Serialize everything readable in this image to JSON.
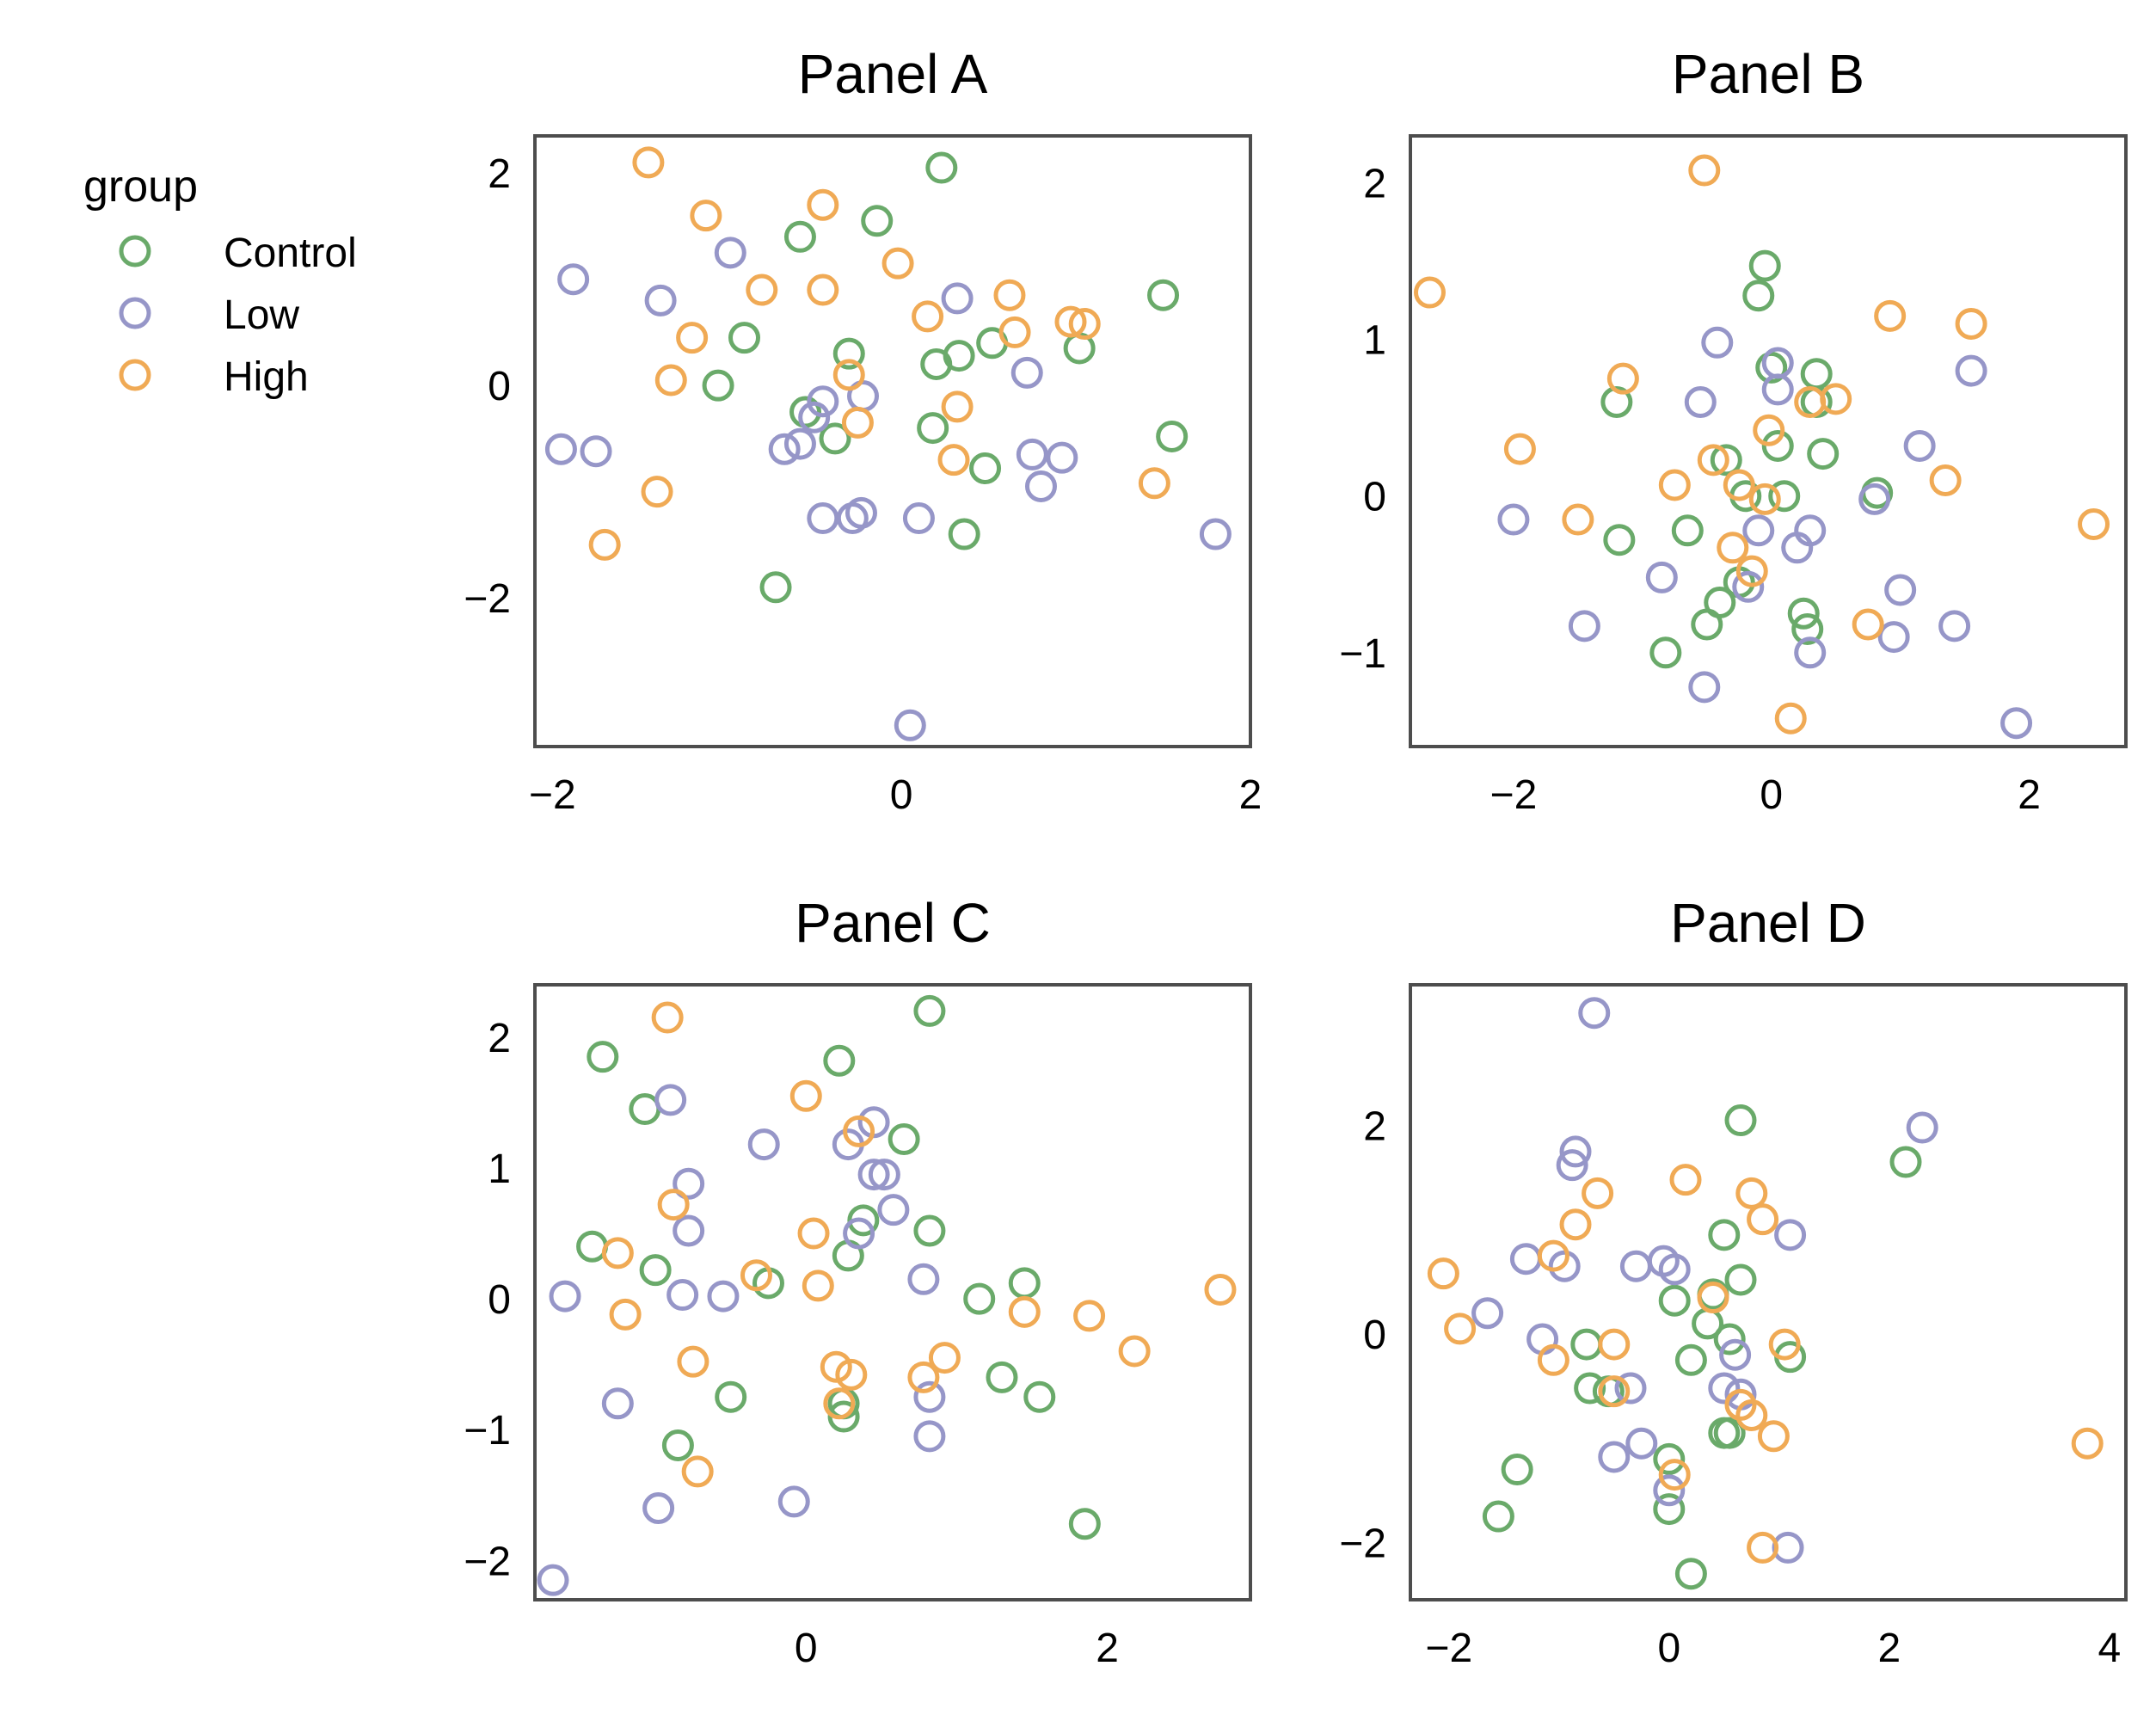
{
  "legend": {
    "title": "group",
    "entries": [
      {
        "name": "Control",
        "color": "#6aaa6a"
      },
      {
        "name": "Low",
        "color": "#9696c8"
      },
      {
        "name": "High",
        "color": "#f0aa55"
      }
    ]
  },
  "chart_data": [
    {
      "type": "scatter",
      "title": "Panel A",
      "xlim": [
        -2.1,
        2.0
      ],
      "ylim": [
        -3.4,
        2.35
      ],
      "xticks": [
        -2,
        0,
        2
      ],
      "yticks": [
        -2,
        0,
        2
      ],
      "tick_labels_x": [
        "−2",
        "0",
        "2"
      ],
      "tick_labels_y": [
        "−2",
        "0",
        "2"
      ],
      "series": [
        {
          "name": "Control",
          "points": [
            [
              0.23,
              2.05
            ],
            [
              -0.14,
              1.55
            ],
            [
              -0.58,
              1.4
            ],
            [
              1.5,
              0.85
            ],
            [
              -0.9,
              0.45
            ],
            [
              -1.05,
              0.0
            ],
            [
              -0.3,
              0.3
            ],
            [
              0.2,
              0.2
            ],
            [
              0.33,
              0.28
            ],
            [
              0.52,
              0.4
            ],
            [
              1.02,
              0.35
            ],
            [
              -0.55,
              -0.25
            ],
            [
              -0.38,
              -0.5
            ],
            [
              0.18,
              -0.4
            ],
            [
              0.48,
              -0.78
            ],
            [
              1.55,
              -0.48
            ],
            [
              0.36,
              -1.4
            ],
            [
              -0.72,
              -1.9
            ]
          ]
        },
        {
          "name": "Low",
          "points": [
            [
              -1.88,
              1.0
            ],
            [
              -1.38,
              0.8
            ],
            [
              -0.98,
              1.25
            ],
            [
              0.32,
              0.82
            ],
            [
              0.72,
              0.12
            ],
            [
              -0.45,
              -0.15
            ],
            [
              -0.5,
              -0.3
            ],
            [
              -0.58,
              -0.55
            ],
            [
              -0.22,
              -0.1
            ],
            [
              -0.67,
              -0.6
            ],
            [
              -1.95,
              -0.6
            ],
            [
              -1.75,
              -0.62
            ],
            [
              0.75,
              -0.65
            ],
            [
              0.92,
              -0.68
            ],
            [
              0.8,
              -0.95
            ],
            [
              -0.45,
              -1.25
            ],
            [
              -0.28,
              -1.25
            ],
            [
              -0.23,
              -1.2
            ],
            [
              0.1,
              -1.25
            ],
            [
              1.8,
              -1.4
            ],
            [
              0.05,
              -3.2
            ]
          ]
        },
        {
          "name": "High",
          "points": [
            [
              -1.45,
              2.1
            ],
            [
              -1.12,
              1.6
            ],
            [
              -0.45,
              1.7
            ],
            [
              -0.02,
              1.15
            ],
            [
              -0.8,
              0.9
            ],
            [
              -0.45,
              0.9
            ],
            [
              0.62,
              0.85
            ],
            [
              0.15,
              0.65
            ],
            [
              0.97,
              0.6
            ],
            [
              1.05,
              0.58
            ],
            [
              -1.2,
              0.45
            ],
            [
              0.65,
              0.5
            ],
            [
              -1.32,
              0.05
            ],
            [
              -0.3,
              0.1
            ],
            [
              0.32,
              -0.2
            ],
            [
              -0.25,
              -0.35
            ],
            [
              0.3,
              -0.7
            ],
            [
              1.45,
              -0.92
            ],
            [
              -1.4,
              -1.0
            ],
            [
              -1.7,
              -1.5
            ]
          ]
        }
      ]
    },
    {
      "type": "scatter",
      "title": "Panel B",
      "xlim": [
        -2.8,
        2.75
      ],
      "ylim": [
        -1.6,
        2.3
      ],
      "xticks": [
        -2,
        0,
        2
      ],
      "yticks": [
        -1,
        0,
        1,
        2
      ],
      "tick_labels_x": [
        "−2",
        "0",
        "2"
      ],
      "tick_labels_y": [
        "−1",
        "0",
        "1",
        "2"
      ],
      "series": [
        {
          "name": "Control",
          "points": [
            [
              -0.05,
              1.47
            ],
            [
              -0.1,
              1.28
            ],
            [
              0.0,
              0.82
            ],
            [
              0.35,
              0.78
            ],
            [
              0.35,
              0.6
            ],
            [
              -1.2,
              0.6
            ],
            [
              0.05,
              0.32
            ],
            [
              0.4,
              0.27
            ],
            [
              -0.35,
              0.23
            ],
            [
              -0.2,
              0.0
            ],
            [
              0.1,
              0.0
            ],
            [
              0.82,
              0.02
            ],
            [
              -1.18,
              -0.28
            ],
            [
              -0.65,
              -0.22
            ],
            [
              -0.25,
              -0.55
            ],
            [
              -0.4,
              -0.68
            ],
            [
              -0.5,
              -0.82
            ],
            [
              0.25,
              -0.75
            ],
            [
              0.28,
              -0.85
            ],
            [
              -0.82,
              -1.0
            ]
          ]
        },
        {
          "name": "Low",
          "points": [
            [
              -0.42,
              0.98
            ],
            [
              0.05,
              0.85
            ],
            [
              0.05,
              0.68
            ],
            [
              -0.55,
              0.6
            ],
            [
              1.55,
              0.8
            ],
            [
              1.15,
              0.32
            ],
            [
              0.8,
              -0.02
            ],
            [
              -2.0,
              -0.15
            ],
            [
              -0.1,
              -0.22
            ],
            [
              0.2,
              -0.33
            ],
            [
              0.3,
              -0.22
            ],
            [
              -0.85,
              -0.52
            ],
            [
              -0.18,
              -0.58
            ],
            [
              1.0,
              -0.6
            ],
            [
              -1.45,
              -0.83
            ],
            [
              0.95,
              -0.9
            ],
            [
              1.42,
              -0.83
            ],
            [
              0.3,
              -1.0
            ],
            [
              -0.52,
              -1.22
            ],
            [
              1.9,
              -1.45
            ]
          ]
        },
        {
          "name": "High",
          "points": [
            [
              -0.52,
              2.08
            ],
            [
              -2.65,
              1.3
            ],
            [
              0.92,
              1.15
            ],
            [
              1.55,
              1.1
            ],
            [
              -1.15,
              0.75
            ],
            [
              0.3,
              0.6
            ],
            [
              0.5,
              0.62
            ],
            [
              -0.02,
              0.42
            ],
            [
              -1.95,
              0.3
            ],
            [
              -0.45,
              0.23
            ],
            [
              -0.75,
              0.07
            ],
            [
              1.35,
              0.1
            ],
            [
              -0.25,
              0.07
            ],
            [
              -0.05,
              -0.02
            ],
            [
              -1.5,
              -0.15
            ],
            [
              -0.15,
              -0.48
            ],
            [
              -0.3,
              -0.33
            ],
            [
              0.75,
              -0.82
            ],
            [
              0.15,
              -1.42
            ],
            [
              2.5,
              -0.18
            ]
          ]
        }
      ]
    },
    {
      "type": "scatter",
      "title": "Panel C",
      "xlim": [
        -1.8,
        2.95
      ],
      "ylim": [
        -2.3,
        2.4
      ],
      "xticks": [
        0,
        2
      ],
      "yticks": [
        -2,
        -1,
        0,
        1,
        2
      ],
      "tick_labels_x": [
        "0",
        "2"
      ],
      "tick_labels_y": [
        "−2",
        "−1",
        "0",
        "1",
        "2"
      ],
      "series": [
        {
          "name": "Control",
          "points": [
            [
              0.82,
              2.2
            ],
            [
              -1.35,
              1.85
            ],
            [
              0.22,
              1.82
            ],
            [
              -1.07,
              1.45
            ],
            [
              0.65,
              1.22
            ],
            [
              0.38,
              0.6
            ],
            [
              0.82,
              0.52
            ],
            [
              -1.42,
              0.4
            ],
            [
              0.28,
              0.33
            ],
            [
              -1.0,
              0.22
            ],
            [
              -0.25,
              0.12
            ],
            [
              1.45,
              0.12
            ],
            [
              1.15,
              0.0
            ],
            [
              1.3,
              -0.6
            ],
            [
              1.55,
              -0.75
            ],
            [
              -0.5,
              -0.75
            ],
            [
              0.25,
              -0.8
            ],
            [
              0.25,
              -0.9
            ],
            [
              -0.85,
              -1.12
            ],
            [
              1.85,
              -1.72
            ]
          ]
        },
        {
          "name": "Low",
          "points": [
            [
              -0.9,
              1.52
            ],
            [
              0.45,
              1.35
            ],
            [
              -0.28,
              1.18
            ],
            [
              0.28,
              1.18
            ],
            [
              0.45,
              0.95
            ],
            [
              0.52,
              0.95
            ],
            [
              -0.78,
              0.88
            ],
            [
              0.58,
              0.68
            ],
            [
              0.35,
              0.5
            ],
            [
              -0.78,
              0.52
            ],
            [
              0.78,
              0.15
            ],
            [
              -1.6,
              0.02
            ],
            [
              -0.82,
              0.03
            ],
            [
              -0.55,
              0.02
            ],
            [
              -1.25,
              -0.8
            ],
            [
              0.82,
              -0.75
            ],
            [
              0.82,
              -1.05
            ],
            [
              -0.98,
              -1.6
            ],
            [
              -0.08,
              -1.55
            ],
            [
              -1.68,
              -2.15
            ]
          ]
        },
        {
          "name": "High",
          "points": [
            [
              -0.92,
              2.15
            ],
            [
              0.0,
              1.55
            ],
            [
              0.35,
              1.28
            ],
            [
              -0.88,
              0.72
            ],
            [
              0.05,
              0.5
            ],
            [
              -1.25,
              0.35
            ],
            [
              -0.33,
              0.18
            ],
            [
              0.08,
              0.1
            ],
            [
              -1.2,
              -0.12
            ],
            [
              1.45,
              -0.1
            ],
            [
              1.88,
              -0.13
            ],
            [
              2.75,
              0.07
            ],
            [
              2.18,
              -0.4
            ],
            [
              -0.75,
              -0.48
            ],
            [
              0.92,
              -0.45
            ],
            [
              0.2,
              -0.52
            ],
            [
              0.3,
              -0.58
            ],
            [
              0.78,
              -0.6
            ],
            [
              0.22,
              -0.8
            ],
            [
              -0.72,
              -1.32
            ]
          ]
        }
      ]
    },
    {
      "type": "scatter",
      "title": "Panel D",
      "xlim": [
        -2.35,
        4.15
      ],
      "ylim": [
        -2.55,
        3.35
      ],
      "xticks": [
        -2,
        0,
        2,
        4
      ],
      "yticks": [
        -2,
        0,
        2
      ],
      "tick_labels_x": [
        "−2",
        "0",
        "2",
        "4"
      ],
      "tick_labels_y": [
        "−2",
        "0",
        "2"
      ],
      "series": [
        {
          "name": "Control",
          "points": [
            [
              0.65,
              2.05
            ],
            [
              2.15,
              1.65
            ],
            [
              0.5,
              0.95
            ],
            [
              0.65,
              0.52
            ],
            [
              0.05,
              0.32
            ],
            [
              0.4,
              0.38
            ],
            [
              0.35,
              0.1
            ],
            [
              0.55,
              -0.05
            ],
            [
              -0.75,
              -0.1
            ],
            [
              -0.72,
              -0.52
            ],
            [
              -0.55,
              -0.55
            ],
            [
              0.2,
              -0.25
            ],
            [
              1.1,
              -0.22
            ],
            [
              0.5,
              -0.95
            ],
            [
              0.55,
              -0.95
            ],
            [
              0.0,
              -1.2
            ],
            [
              -1.38,
              -1.3
            ],
            [
              0.0,
              -1.68
            ],
            [
              -1.55,
              -1.75
            ],
            [
              0.2,
              -2.3
            ]
          ]
        },
        {
          "name": "Low",
          "points": [
            [
              -0.68,
              3.08
            ],
            [
              2.3,
              1.98
            ],
            [
              -0.85,
              1.75
            ],
            [
              -0.88,
              1.62
            ],
            [
              1.1,
              0.95
            ],
            [
              -1.3,
              0.72
            ],
            [
              -0.95,
              0.65
            ],
            [
              -0.05,
              0.7
            ],
            [
              0.05,
              0.62
            ],
            [
              -0.3,
              0.65
            ],
            [
              -1.65,
              0.2
            ],
            [
              -1.15,
              -0.05
            ],
            [
              0.6,
              -0.2
            ],
            [
              -0.35,
              -0.52
            ],
            [
              0.5,
              -0.52
            ],
            [
              0.65,
              -0.58
            ],
            [
              -0.25,
              -1.05
            ],
            [
              -0.5,
              -1.18
            ],
            [
              0.0,
              -1.5
            ],
            [
              1.08,
              -2.05
            ]
          ]
        },
        {
          "name": "High",
          "points": [
            [
              -0.65,
              1.35
            ],
            [
              0.15,
              1.48
            ],
            [
              0.75,
              1.35
            ],
            [
              0.85,
              1.1
            ],
            [
              -0.85,
              1.05
            ],
            [
              -1.05,
              0.75
            ],
            [
              -2.05,
              0.58
            ],
            [
              0.4,
              0.35
            ],
            [
              -1.9,
              0.05
            ],
            [
              -0.5,
              -0.1
            ],
            [
              1.05,
              -0.1
            ],
            [
              -1.05,
              -0.25
            ],
            [
              0.65,
              -0.68
            ],
            [
              0.75,
              -0.78
            ],
            [
              0.95,
              -0.98
            ],
            [
              -0.5,
              -0.55
            ],
            [
              0.05,
              -1.35
            ],
            [
              0.85,
              -2.05
            ],
            [
              3.8,
              -1.05
            ]
          ]
        }
      ]
    }
  ]
}
